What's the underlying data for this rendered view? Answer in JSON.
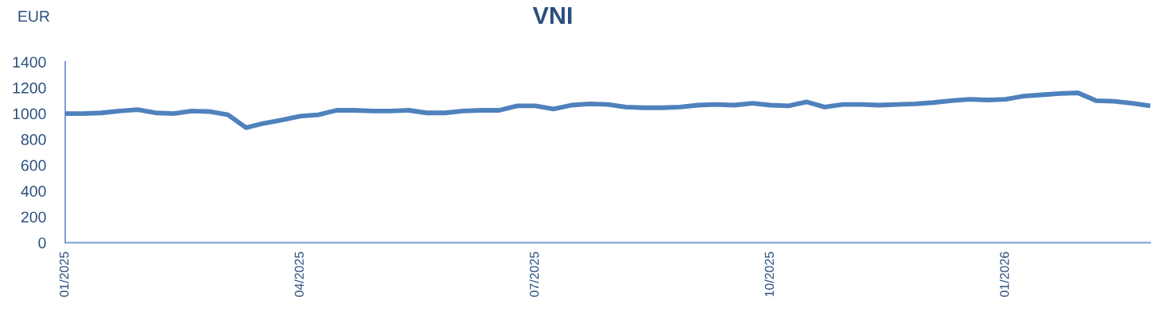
{
  "chart_data": {
    "type": "line",
    "title": "VNI",
    "ylabel": "EUR",
    "categories": [
      "01/2025",
      null,
      null,
      null,
      null,
      null,
      null,
      null,
      null,
      null,
      null,
      null,
      null,
      "04/2025",
      null,
      null,
      null,
      null,
      null,
      null,
      null,
      null,
      null,
      null,
      null,
      null,
      "07/2025",
      null,
      null,
      null,
      null,
      null,
      null,
      null,
      null,
      null,
      null,
      null,
      null,
      "10/2025",
      null,
      null,
      null,
      null,
      null,
      null,
      null,
      null,
      null,
      null,
      null,
      null,
      "01/2026",
      null,
      null,
      null,
      null,
      null,
      null,
      null,
      null
    ],
    "series": [
      {
        "color": "#4f81bd",
        "values": [
          1000,
          1000,
          1005,
          1020,
          1030,
          1005,
          1000,
          1020,
          1015,
          990,
          890,
          925,
          950,
          980,
          990,
          1025,
          1025,
          1020,
          1020,
          1025,
          1005,
          1005,
          1020,
          1025,
          1025,
          1060,
          1060,
          1035,
          1065,
          1075,
          1070,
          1050,
          1045,
          1045,
          1050,
          1065,
          1070,
          1065,
          1080,
          1065,
          1060,
          1090,
          1050,
          1070,
          1070,
          1065,
          1070,
          1075,
          1085,
          1100,
          1110,
          1105,
          1110,
          1135,
          1145,
          1155,
          1160,
          1100,
          1095,
          1080,
          1060
        ]
      }
    ],
    "ylim": [
      0,
      1400
    ],
    "yticks": [
      0,
      200,
      400,
      600,
      800,
      1000,
      1200,
      1400
    ],
    "grid": false,
    "marker": "none",
    "line_style": "solid"
  }
}
